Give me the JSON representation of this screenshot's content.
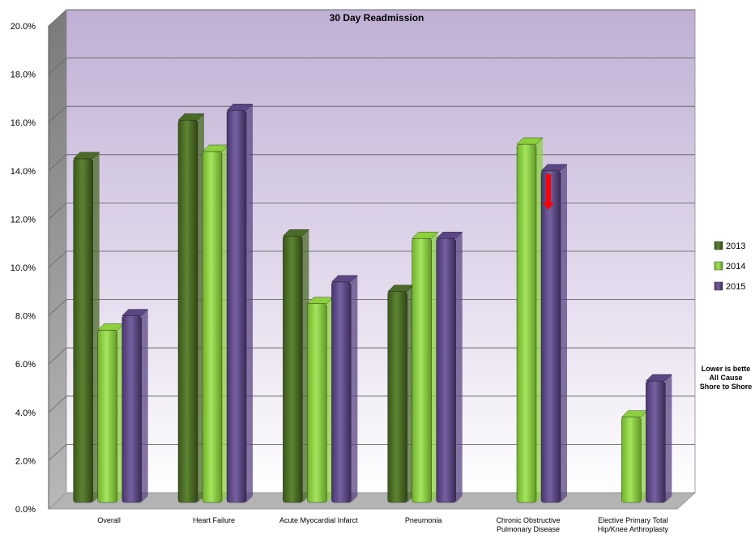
{
  "chart_data": {
    "type": "bar",
    "title": "30 Day Readmission",
    "categories": [
      [
        "Overall"
      ],
      [
        "Heart Failure"
      ],
      [
        "Acute Myocardial Infarct"
      ],
      [
        "Pneumonia"
      ],
      [
        "Chronic Obstructive",
        "Pulmonary Disease"
      ],
      [
        "Elective Primary Total",
        "Hip/Knee Arthroplasty"
      ]
    ],
    "series": [
      {
        "name": "2013",
        "color": "#4a6b26",
        "values": [
          14.5,
          16.1,
          11.3,
          9.0,
          null,
          null
        ]
      },
      {
        "name": "2014",
        "color": "#8cd13c",
        "values": [
          7.4,
          14.8,
          8.5,
          11.2,
          15.1,
          3.8
        ]
      },
      {
        "name": "2015",
        "color": "#5b4585",
        "values": [
          8.0,
          16.5,
          9.4,
          11.2,
          14.0,
          5.3
        ]
      }
    ],
    "ylim": [
      0,
      20
    ],
    "yticks": [
      "0.0%",
      "2.0%",
      "4.0%",
      "6.0%",
      "8.0%",
      "10.0%",
      "12.0%",
      "14.0%",
      "16.0%",
      "18.0%",
      "20.0%"
    ],
    "grid": true,
    "legend_position": "right",
    "annotations": {
      "arrow": {
        "category_index": 4,
        "series_index": 2,
        "color": "#ff0000",
        "direction": "down"
      },
      "note_lines": [
        "Lower is bette",
        "All Cause",
        "Shore to Shore"
      ]
    }
  }
}
